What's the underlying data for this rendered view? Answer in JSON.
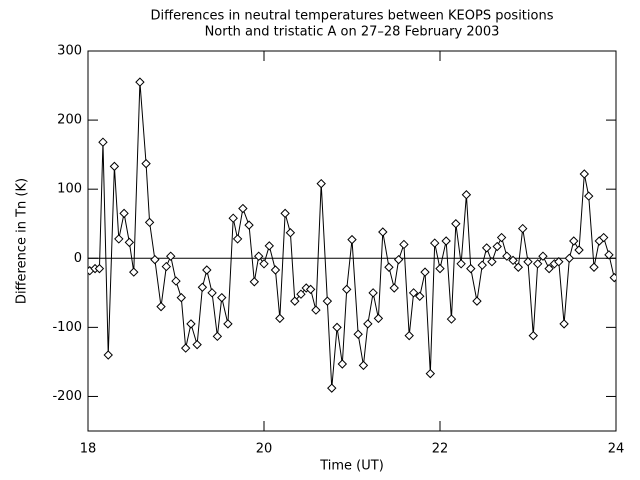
{
  "chart_data": {
    "type": "line",
    "title": "Differences in neutral temperatures between KEOPS positions",
    "subtitle": "North and tristatic A on 27–28 February 2003",
    "x_label": "Time (UT)",
    "y_label": "Difference in Tn (K)",
    "xlim": [
      18,
      24
    ],
    "xticks": [
      18,
      20,
      22,
      24
    ],
    "ylim": [
      -250,
      300
    ],
    "yticks": [
      -200,
      -100,
      0,
      100,
      200,
      300
    ],
    "reference_line": 0,
    "color": "#000000",
    "marker": "diamond",
    "x": [
      18.02,
      18.08,
      18.13,
      18.17,
      18.23,
      18.3,
      18.35,
      18.41,
      18.47,
      18.52,
      18.59,
      18.66,
      18.7,
      18.76,
      18.83,
      18.89,
      18.94,
      19.0,
      19.06,
      19.11,
      19.17,
      19.24,
      19.3,
      19.35,
      19.41,
      19.47,
      19.52,
      19.59,
      19.65,
      19.7,
      19.76,
      19.83,
      19.89,
      19.94,
      20.0,
      20.06,
      20.13,
      20.18,
      20.24,
      20.3,
      20.35,
      20.42,
      20.48,
      20.53,
      20.59,
      20.65,
      20.72,
      20.77,
      20.83,
      20.89,
      20.94,
      21.0,
      21.07,
      21.13,
      21.18,
      21.24,
      21.3,
      21.35,
      21.42,
      21.48,
      21.53,
      21.59,
      21.65,
      21.7,
      21.77,
      21.83,
      21.89,
      21.94,
      22.0,
      22.07,
      22.13,
      22.18,
      22.24,
      22.3,
      22.35,
      22.42,
      22.48,
      22.53,
      22.59,
      22.65,
      22.7,
      22.76,
      22.83,
      22.89,
      22.94,
      23.0,
      23.06,
      23.11,
      23.17,
      23.24,
      23.3,
      23.35,
      23.41,
      23.47,
      23.52,
      23.58,
      23.64,
      23.69,
      23.75,
      23.81,
      23.86,
      23.92,
      23.98
    ],
    "values": [
      -18,
      -15,
      -15,
      168,
      -140,
      133,
      28,
      65,
      23,
      -20,
      255,
      137,
      52,
      -2,
      -70,
      -12,
      3,
      -33,
      -57,
      -130,
      -95,
      -125,
      -42,
      -17,
      -50,
      -113,
      -57,
      -95,
      58,
      28,
      72,
      48,
      -34,
      3,
      -8,
      18,
      -17,
      -87,
      65,
      37,
      -62,
      -52,
      -43,
      -45,
      -75,
      108,
      -62,
      -188,
      -100,
      -153,
      -45,
      27,
      -110,
      -155,
      -95,
      -50,
      -87,
      38,
      -13,
      -43,
      -2,
      20,
      -112,
      -50,
      -55,
      -20,
      -167,
      22,
      -15,
      25,
      -88,
      50,
      -8,
      92,
      -15,
      -62,
      -10,
      15,
      -5,
      17,
      30,
      3,
      -3,
      -13,
      43,
      -5,
      -112,
      -8,
      3,
      -15,
      -8,
      -5,
      -95,
      0,
      25,
      12,
      122,
      90,
      -13,
      25,
      30,
      5,
      -28
    ]
  }
}
